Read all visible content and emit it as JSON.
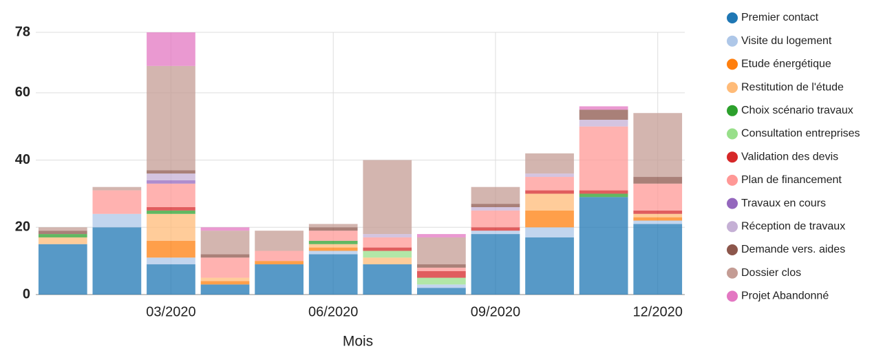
{
  "chart_data": {
    "type": "stacked_bar",
    "xlabel": "Mois",
    "categories": [
      null,
      null,
      "03/2020",
      null,
      null,
      "06/2020",
      null,
      null,
      "09/2020",
      null,
      null,
      "12/2020"
    ],
    "ylim": [
      0,
      78
    ],
    "yticks": [
      0,
      20,
      40,
      60,
      78
    ],
    "grid": true,
    "legend": "right",
    "series": [
      {
        "name": "Premier contact",
        "color": "#1f77b4",
        "values": [
          15,
          20,
          9,
          3,
          9,
          12,
          9,
          2,
          18,
          17,
          29,
          21
        ]
      },
      {
        "name": "Visite du logement",
        "color": "#aec7e8",
        "values": [
          0,
          4,
          2,
          0,
          0,
          1,
          0,
          1,
          1,
          3,
          0,
          1
        ]
      },
      {
        "name": "Etude énergétique",
        "color": "#ff7f0e",
        "values": [
          0,
          0,
          5,
          1,
          1,
          1,
          0,
          0,
          0,
          5,
          0,
          1
        ]
      },
      {
        "name": "Restitution de l'étude",
        "color": "#ffbb78",
        "values": [
          2,
          0,
          8,
          1,
          0,
          1,
          2,
          0,
          0,
          5,
          0,
          1
        ]
      },
      {
        "name": "Choix scénario travaux",
        "color": "#2ca02c",
        "values": [
          1,
          0,
          1,
          0,
          0,
          1,
          0,
          0,
          0,
          0,
          1,
          0
        ]
      },
      {
        "name": "Consultation entreprises",
        "color": "#98df8a",
        "values": [
          0,
          0,
          0,
          0,
          0,
          0,
          2,
          2,
          0,
          0,
          0,
          0
        ]
      },
      {
        "name": "Validation des devis",
        "color": "#d62728",
        "values": [
          0,
          0,
          1,
          0,
          0,
          0,
          1,
          2,
          1,
          1,
          1,
          1
        ]
      },
      {
        "name": "Plan de financement",
        "color": "#ff9896",
        "values": [
          0,
          7,
          7,
          6,
          3,
          3,
          3,
          1,
          5,
          4,
          19,
          8
        ]
      },
      {
        "name": "Travaux en cours",
        "color": "#9467bd",
        "values": [
          0,
          0,
          1,
          0,
          0,
          0,
          0,
          0,
          0,
          0,
          0,
          0
        ]
      },
      {
        "name": "Réception de travaux",
        "color": "#c5b0d5",
        "values": [
          0,
          0,
          2,
          0,
          0,
          0,
          1,
          0,
          1,
          1,
          2,
          0
        ]
      },
      {
        "name": "Demande vers. aides",
        "color": "#8c564b",
        "values": [
          1,
          0,
          1,
          1,
          0,
          1,
          0,
          1,
          1,
          0,
          3,
          2
        ]
      },
      {
        "name": "Dossier clos",
        "color": "#c49c94",
        "values": [
          1,
          1,
          31,
          7,
          6,
          1,
          22,
          8,
          5,
          6,
          0,
          19
        ]
      },
      {
        "name": "Projet Abandonné",
        "color": "#e377c2",
        "values": [
          0,
          0,
          10,
          1,
          0,
          0,
          0,
          1,
          0,
          0,
          1,
          0
        ]
      }
    ]
  }
}
